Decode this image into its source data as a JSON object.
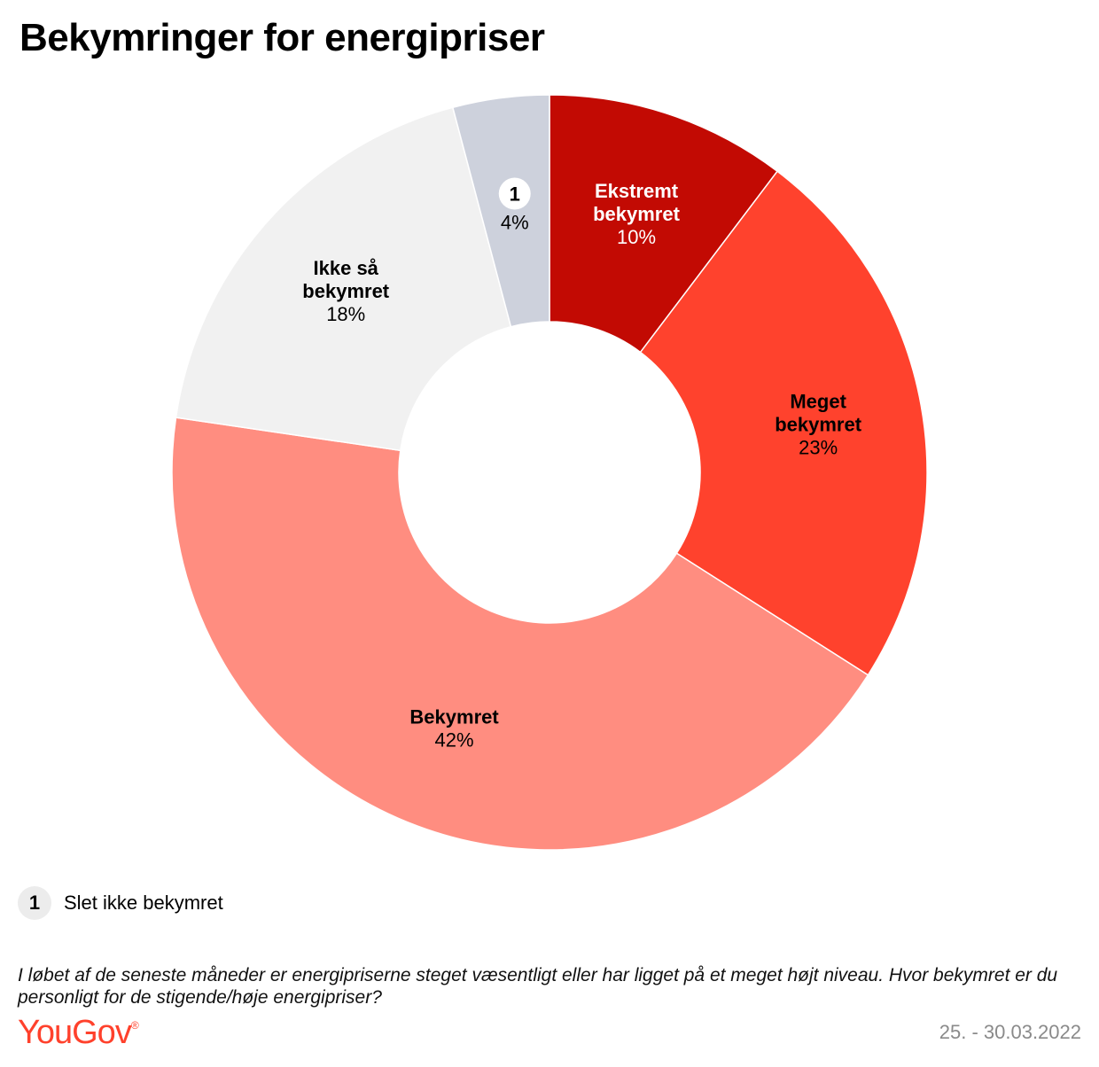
{
  "title": "Bekymringer for energipriser",
  "chart_data": {
    "type": "pie",
    "subtype": "donut",
    "slices": [
      {
        "label": [
          "Ekstremt",
          "bekymret"
        ],
        "value": 10,
        "value_label": "10%",
        "color": "#c20a03",
        "text_color": "#ffffff"
      },
      {
        "label": [
          "Meget",
          "bekymret"
        ],
        "value": 23,
        "value_label": "23%",
        "color": "#ff422d",
        "text_color": "#000000"
      },
      {
        "label": [
          "Bekymret"
        ],
        "value": 42,
        "value_label": "42%",
        "color": "#ff8d80",
        "text_color": "#000000"
      },
      {
        "label": [
          "Ikke så",
          "bekymret"
        ],
        "value": 18,
        "value_label": "18%",
        "color": "#f1f1f1",
        "text_color": "#000000"
      },
      {
        "label": [],
        "marker": "1",
        "value": 4,
        "value_label": "4%",
        "color": "#cdd1dc",
        "text_color": "#000000"
      }
    ]
  },
  "footnote": {
    "marker": "1",
    "text": "Slet ikke bekymret"
  },
  "question": "I løbet af de seneste måneder er energipriserne steget væsentligt eller har ligget på et meget højt niveau. Hvor bekymret er du personligt for de stigende/høje energipriser?",
  "brand": {
    "name": "YouGov",
    "mark": "®",
    "color": "#ff412c"
  },
  "date": "25. - 30.03.2022"
}
